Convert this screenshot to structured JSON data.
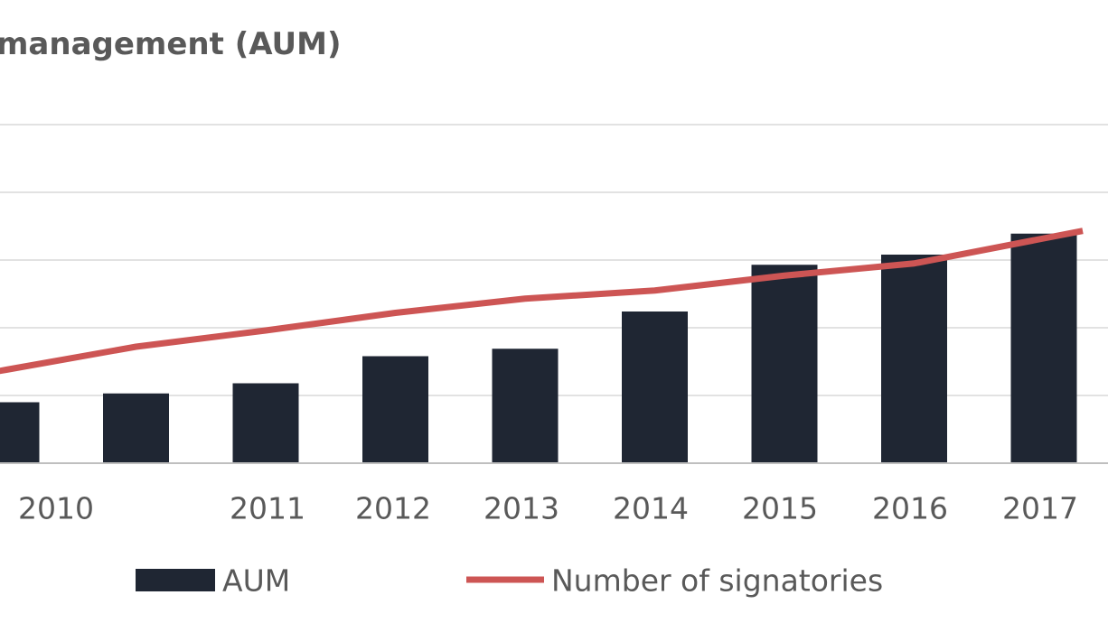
{
  "chart_data": {
    "type": "bar",
    "title": "management (AUM)",
    "categories": [
      "2010",
      "",
      "2011",
      "2012",
      "2013",
      "2014",
      "2015",
      "2016",
      "2017"
    ],
    "series": [
      {
        "name": "AUM",
        "kind": "bar",
        "color": "#1f2633",
        "values": [
          0.9,
          1.03,
          1.18,
          1.58,
          1.69,
          2.24,
          2.93,
          3.08,
          3.39
        ]
      },
      {
        "name": "Number of signatories",
        "kind": "line",
        "color": "#cd5554",
        "values": [
          1.38,
          1.72,
          1.96,
          2.22,
          2.43,
          2.55,
          2.77,
          2.95,
          3.32
        ]
      }
    ],
    "ylim": [
      0,
      5
    ],
    "y_gridlines": [
      1,
      2,
      3,
      4,
      5
    ],
    "grid": true,
    "legend_position": "bottom"
  }
}
